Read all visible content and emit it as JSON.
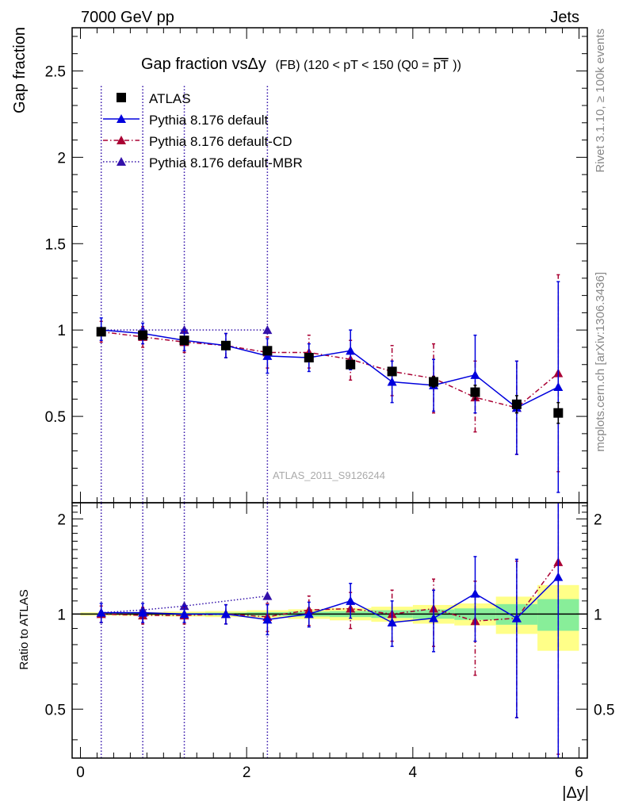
{
  "header": {
    "left": "7000 GeV pp",
    "right": "Jets"
  },
  "side_labels": {
    "rivet": "Rivet 3.1.10, ≥ 100k events",
    "mcplots": "mcplots.cern.ch [arXiv:1306.3436]"
  },
  "chart_data": [
    {
      "panel": "main",
      "type": "scatter",
      "title": {
        "main": "Gap fraction vsΔy",
        "sub": "(FB) (120 < pT < 150 (Q0 =",
        "overline": "pT",
        "end": "))"
      },
      "ylabel": "Gap fraction",
      "watermark": "ATLAS_2011_S9126244",
      "xlim": [
        -0.1,
        6.1
      ],
      "ylim": [
        0,
        2.75
      ],
      "y_ticks": [
        0.5,
        1,
        1.5,
        2,
        2.5
      ],
      "y_tick_labels": [
        "0.5",
        "1",
        "1.5",
        "2",
        "2.5"
      ],
      "x": [
        0.25,
        0.75,
        1.25,
        1.75,
        2.25,
        2.75,
        3.25,
        3.75,
        4.25,
        4.75,
        5.25,
        5.75
      ],
      "series": [
        {
          "name": "ATLAS",
          "color": "#000000",
          "marker": "square",
          "line": "none",
          "values": [
            0.99,
            0.97,
            0.94,
            0.91,
            0.88,
            0.84,
            0.8,
            0.76,
            0.7,
            0.64,
            0.57,
            0.52
          ],
          "err": [
            0.01,
            0.01,
            0.01,
            0.01,
            0.01,
            0.01,
            0.01,
            0.02,
            0.03,
            0.04,
            0.05,
            0.06
          ]
        },
        {
          "name": "Pythia 8.176 default",
          "color": "#0000dd",
          "marker": "triangle",
          "line": "solid",
          "values": [
            1.0,
            0.98,
            0.94,
            0.91,
            0.85,
            0.84,
            0.88,
            0.7,
            0.68,
            0.74,
            0.55,
            0.67
          ],
          "err_lo": [
            0.06,
            0.06,
            0.06,
            0.07,
            0.1,
            0.08,
            0.11,
            0.12,
            0.15,
            0.22,
            0.27,
            0.61
          ],
          "err_hi": [
            0.07,
            0.06,
            0.06,
            0.07,
            0.1,
            0.08,
            0.12,
            0.12,
            0.15,
            0.23,
            0.27,
            0.61
          ]
        },
        {
          "name": "Pythia 8.176 default-CD",
          "color": "#aa0033",
          "marker": "triangle",
          "line": "dashdot",
          "values": [
            0.99,
            0.96,
            0.93,
            0.91,
            0.87,
            0.87,
            0.83,
            0.76,
            0.72,
            0.61,
            0.55,
            0.75
          ],
          "err_lo": [
            0.06,
            0.06,
            0.06,
            0.07,
            0.09,
            0.09,
            0.12,
            0.14,
            0.2,
            0.2,
            0.27,
            0.57
          ],
          "err_hi": [
            0.06,
            0.06,
            0.06,
            0.07,
            0.09,
            0.1,
            0.11,
            0.15,
            0.2,
            0.21,
            0.27,
            0.57
          ]
        },
        {
          "name": "Pythia 8.176 default-MBR",
          "color": "#3311aa",
          "marker": "triangle",
          "line": "dotted",
          "values": [
            1.0,
            1.0,
            1.0,
            null,
            1.0,
            null,
            null,
            null,
            null,
            null,
            null,
            null
          ],
          "err_lo": [
            1.0,
            1.0,
            1.0,
            0,
            1.0,
            0,
            0,
            0,
            0,
            0,
            0,
            0
          ],
          "err_hi": [
            1.42,
            1.42,
            1.42,
            0,
            1.42,
            0,
            0,
            0,
            0,
            0,
            0,
            0
          ]
        }
      ]
    },
    {
      "panel": "ratio",
      "type": "scatter",
      "ylabel": "Ratio to ATLAS",
      "xlabel": "|Δy|",
      "xlim": [
        -0.1,
        6.1
      ],
      "ylim": [
        0.35,
        2.25
      ],
      "x_ticks": [
        0,
        2,
        4,
        6
      ],
      "x_tick_labels": [
        "0",
        "2",
        "4",
        "6"
      ],
      "y_ticks": [
        0.5,
        1,
        2
      ],
      "y_tick_labels": [
        "0.5",
        "1",
        "2"
      ],
      "bands": {
        "x_edges": [
          0.0,
          0.5,
          1.0,
          1.5,
          2.0,
          2.5,
          3.0,
          3.5,
          4.0,
          4.5,
          5.0,
          5.5,
          6.0
        ],
        "inner": [
          0.005,
          0.006,
          0.008,
          0.01,
          0.013,
          0.018,
          0.022,
          0.028,
          0.034,
          0.042,
          0.075,
          0.115
        ],
        "outer": [
          0.012,
          0.014,
          0.018,
          0.022,
          0.028,
          0.035,
          0.045,
          0.055,
          0.068,
          0.08,
          0.135,
          0.235
        ],
        "inner_color": "#88ee99",
        "outer_color": "#ffff88"
      },
      "x": [
        0.25,
        0.75,
        1.25,
        1.75,
        2.25,
        2.75,
        3.25,
        3.75,
        4.25,
        4.75,
        5.25,
        5.75
      ],
      "series": [
        {
          "name": "Pythia 8.176 default",
          "color": "#0000dd",
          "marker": "triangle",
          "line": "solid",
          "values": [
            1.01,
            1.01,
            1.0,
            1.0,
            0.96,
            1.0,
            1.1,
            0.94,
            0.97,
            1.16,
            0.97,
            1.31
          ],
          "err_lo": [
            0.07,
            0.07,
            0.06,
            0.07,
            0.1,
            0.09,
            0.13,
            0.15,
            0.21,
            0.34,
            0.5,
            1.1
          ],
          "err_hi": [
            0.07,
            0.07,
            0.06,
            0.07,
            0.11,
            0.09,
            0.15,
            0.16,
            0.22,
            0.36,
            0.52,
            1.1
          ]
        },
        {
          "name": "Pythia 8.176 default-CD",
          "color": "#aa0033",
          "marker": "triangle",
          "line": "dashdot",
          "values": [
            1.0,
            0.99,
            0.99,
            1.0,
            0.98,
            1.03,
            1.04,
            1.0,
            1.04,
            0.95,
            0.97,
            1.46
          ],
          "err_lo": [
            0.06,
            0.06,
            0.06,
            0.07,
            0.1,
            0.11,
            0.14,
            0.18,
            0.25,
            0.31,
            0.5,
            1.1
          ],
          "err_hi": [
            0.06,
            0.06,
            0.06,
            0.07,
            0.1,
            0.11,
            0.13,
            0.19,
            0.25,
            0.32,
            0.5,
            1.1
          ]
        },
        {
          "name": "Pythia 8.176 default-MBR",
          "color": "#3311aa",
          "marker": "triangle",
          "line": "dotted",
          "values": [
            1.01,
            1.03,
            1.06,
            null,
            1.14,
            null,
            null,
            null,
            null,
            null,
            null,
            null
          ],
          "err_lo": [
            1.0,
            1.0,
            1.0,
            0,
            1.0,
            0,
            0,
            0,
            0,
            0,
            0,
            0
          ],
          "err_hi": [
            1.5,
            1.5,
            1.5,
            0,
            1.5,
            0,
            0,
            0,
            0,
            0,
            0,
            0
          ]
        }
      ]
    }
  ]
}
